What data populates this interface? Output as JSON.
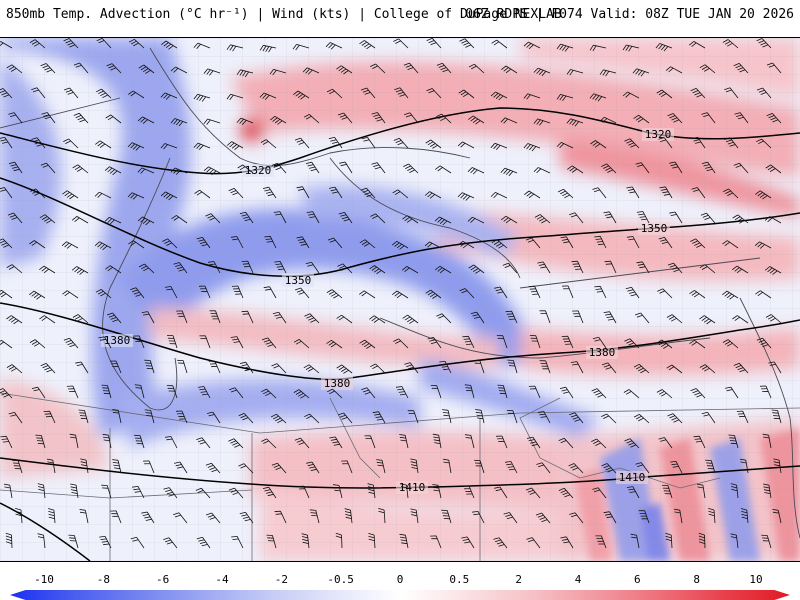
{
  "header": {
    "title_left": "850mb Temp. Advection (°C hr⁻¹) | Wind (kts) | College of DuPage NEXLAB",
    "title_right": "06Z RDPS | F074 Valid: 08Z TUE JAN 20 2026"
  },
  "colors": {
    "strong_cold": "#2b3ff0",
    "cold": "#7f8ff0",
    "weak_cold": "#c9cff5",
    "neutral": "#f4f4fb",
    "weak_warm": "#f8d0d4",
    "warm": "#f09aa3",
    "strong_warm": "#e8404b",
    "contour": "#000000",
    "border": "#555555"
  },
  "contours": [
    {
      "label": "1320"
    },
    {
      "label": "1350"
    },
    {
      "label": "1380"
    },
    {
      "label": "1410"
    }
  ],
  "contour_labels": [
    {
      "text": "1320",
      "key": "c1320a"
    },
    {
      "text": "1320",
      "key": "c1320b"
    },
    {
      "text": "1350",
      "key": "c1350a"
    },
    {
      "text": "1350",
      "key": "c1350b"
    },
    {
      "text": "1380",
      "key": "c1380a"
    },
    {
      "text": "1380",
      "key": "c1380b"
    },
    {
      "text": "1380",
      "key": "c1380c"
    },
    {
      "text": "1410",
      "key": "c1410a"
    },
    {
      "text": "1410",
      "key": "c1410b"
    }
  ],
  "colorbar": {
    "ticks": [
      "-10",
      "-8",
      "-6",
      "-4",
      "-2",
      "-0.5",
      "0",
      "0.5",
      "2",
      "4",
      "6",
      "8",
      "10"
    ],
    "gradient": [
      "#1c2ff0",
      "#4a5ef0",
      "#7484ef",
      "#9ea9f2",
      "#c4cbf6",
      "#e3e6fa",
      "#ffffff",
      "#fbe2e4",
      "#f6c2c7",
      "#f29aa2",
      "#ee6f7a",
      "#e8404b",
      "#e01a24"
    ]
  }
}
